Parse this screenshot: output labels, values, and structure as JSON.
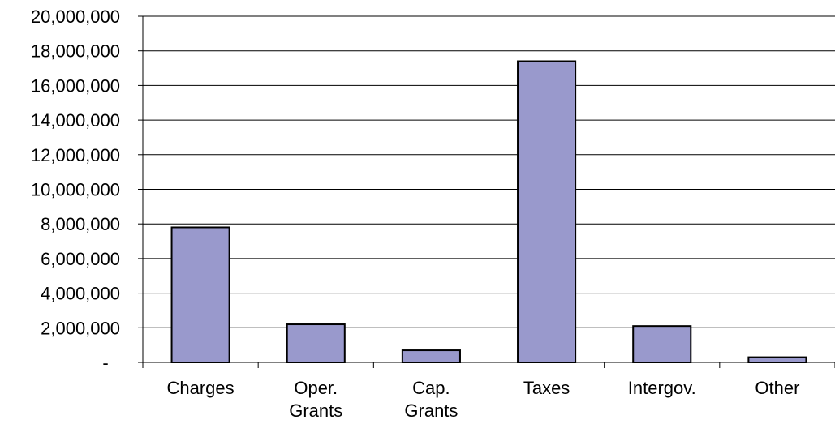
{
  "chart_data": {
    "type": "bar",
    "categories": [
      "Charges",
      "Oper. Grants",
      "Cap. Grants",
      "Taxes",
      "Intergov.",
      "Other"
    ],
    "category_lines": [
      [
        "Charges"
      ],
      [
        "Oper.",
        "Grants"
      ],
      [
        "Cap.",
        "Grants"
      ],
      [
        "Taxes"
      ],
      [
        "Intergov."
      ],
      [
        "Other"
      ]
    ],
    "values": [
      7800000,
      2200000,
      700000,
      17400000,
      2100000,
      300000
    ],
    "ylim": [
      0,
      20000000
    ],
    "yticks": [
      0,
      2000000,
      4000000,
      6000000,
      8000000,
      10000000,
      12000000,
      14000000,
      16000000,
      18000000,
      20000000
    ],
    "ytick_labels": [
      "-",
      "2,000,000",
      "4,000,000",
      "6,000,000",
      "8,000,000",
      "10,000,000",
      "12,000,000",
      "14,000,000",
      "16,000,000",
      "18,000,000",
      "20,000,000"
    ],
    "grid": true,
    "bar_color": "#9999cc",
    "title": "",
    "xlabel": "",
    "ylabel": ""
  }
}
